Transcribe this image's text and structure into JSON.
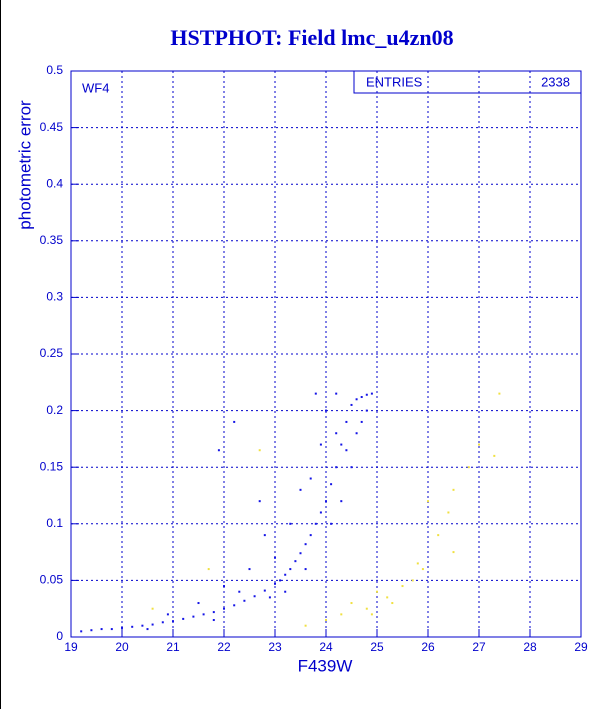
{
  "chart_data": {
    "type": "scatter",
    "title": "HSTPHOT: Field lmc_u4zn08",
    "xlabel": "F439W",
    "ylabel": "photometric error",
    "annotation": "WF4",
    "stats": {
      "label": "ENTRIES",
      "value": 2338
    },
    "xlim": [
      19,
      29
    ],
    "xticks": [
      19,
      20,
      21,
      22,
      23,
      24,
      25,
      26,
      27,
      28,
      29
    ],
    "ylim": [
      0,
      0.5
    ],
    "yticks": [
      0,
      0.05,
      0.1,
      0.15,
      0.2,
      0.25,
      0.3,
      0.35,
      0.4,
      0.45,
      0.5
    ],
    "grid": true,
    "series": [
      {
        "color": "#1414e6",
        "x": [
          19.2,
          19.4,
          19.6,
          19.8,
          20.0,
          20.2,
          20.4,
          20.6,
          20.8,
          21.0,
          21.2,
          21.4,
          21.6,
          21.8,
          22.0,
          22.2,
          22.4,
          22.6,
          22.8,
          23.0,
          23.1,
          23.2,
          23.3,
          23.4,
          23.5,
          23.6,
          23.7,
          23.8,
          23.9,
          24.0,
          24.1,
          24.2,
          24.3,
          24.4,
          24.5,
          24.6,
          24.7,
          24.8,
          24.9,
          22.0,
          22.5,
          22.8,
          23.0,
          23.3,
          23.5,
          23.7,
          23.9,
          24.0,
          24.2,
          23.8,
          22.2,
          21.9,
          22.7,
          20.9,
          21.5,
          22.3,
          24.3,
          24.5,
          24.6,
          24.1,
          23.6,
          23.2,
          22.9,
          21.8,
          20.5,
          24.8,
          24.7,
          24.4,
          24.2
        ],
        "values": [
          0.005,
          0.006,
          0.007,
          0.007,
          0.008,
          0.009,
          0.01,
          0.011,
          0.013,
          0.014,
          0.016,
          0.018,
          0.02,
          0.022,
          0.025,
          0.028,
          0.032,
          0.036,
          0.041,
          0.047,
          0.05,
          0.055,
          0.06,
          0.067,
          0.074,
          0.082,
          0.09,
          0.1,
          0.11,
          0.12,
          0.135,
          0.15,
          0.17,
          0.19,
          0.205,
          0.21,
          0.212,
          0.214,
          0.215,
          0.045,
          0.06,
          0.09,
          0.07,
          0.1,
          0.13,
          0.14,
          0.17,
          0.2,
          0.215,
          0.215,
          0.19,
          0.165,
          0.12,
          0.02,
          0.03,
          0.04,
          0.12,
          0.15,
          0.18,
          0.1,
          0.06,
          0.04,
          0.035,
          0.015,
          0.007,
          0.2,
          0.19,
          0.165,
          0.18
        ]
      },
      {
        "color": "#f0e040",
        "x": [
          23.6,
          24.0,
          24.3,
          24.5,
          24.8,
          25.0,
          25.2,
          25.5,
          25.7,
          25.9,
          26.2,
          26.4,
          26.5,
          26.8,
          27.0,
          27.3,
          27.4,
          26.0,
          25.8,
          25.3,
          26.5,
          21.7,
          22.7,
          20.6,
          24.9
        ],
        "values": [
          0.01,
          0.015,
          0.02,
          0.03,
          0.025,
          0.04,
          0.035,
          0.045,
          0.05,
          0.06,
          0.09,
          0.11,
          0.13,
          0.15,
          0.17,
          0.16,
          0.215,
          0.12,
          0.065,
          0.03,
          0.075,
          0.06,
          0.165,
          0.025,
          0.02
        ]
      }
    ]
  }
}
